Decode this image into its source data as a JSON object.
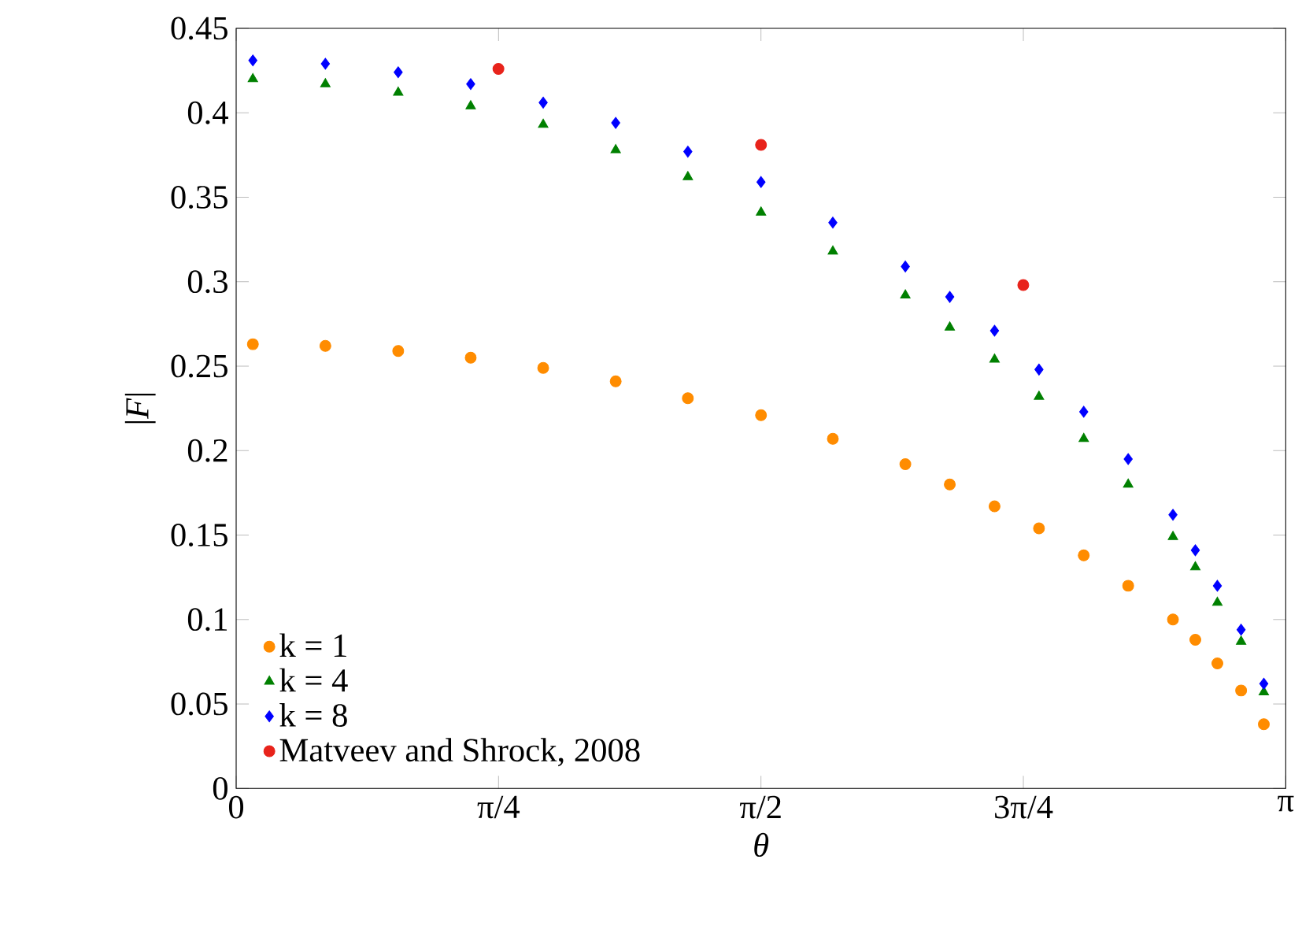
{
  "chart_data": {
    "type": "scatter",
    "xlabel": "θ",
    "ylabel": "|*F*|",
    "xlim": [
      0,
      3.14159
    ],
    "ylim": [
      0,
      0.45
    ],
    "xticks": [
      0,
      {
        "value": 0.7854,
        "label": "π/4"
      },
      {
        "value": 1.5708,
        "label": "π/2"
      },
      {
        "value": 2.3562,
        "label": "3π/4"
      },
      {
        "value": 3.14159,
        "label": "π"
      }
    ],
    "yticks": [
      0,
      0.05,
      0.1,
      0.15,
      0.2,
      0.25,
      0.3,
      0.35,
      0.4,
      0.45
    ],
    "legend": "bottom left",
    "grid": false,
    "series": [
      {
        "name": "k = 1",
        "color": "#ff8c00",
        "marker": "circle",
        "x": [
          0.05,
          0.267,
          0.485,
          0.702,
          0.919,
          1.136,
          1.352,
          1.571,
          1.786,
          2.003,
          2.136,
          2.27,
          2.403,
          2.537,
          2.67,
          2.804,
          2.871,
          2.937,
          3.008,
          3.076
        ],
        "values": [
          0.263,
          0.262,
          0.259,
          0.255,
          0.249,
          0.241,
          0.231,
          0.221,
          0.207,
          0.192,
          0.18,
          0.167,
          0.154,
          0.138,
          0.12,
          0.1,
          0.088,
          0.074,
          0.058,
          0.038
        ]
      },
      {
        "name": "k = 4",
        "color": "#008000",
        "marker": "triangle",
        "x": [
          0.05,
          0.267,
          0.485,
          0.702,
          0.919,
          1.136,
          1.352,
          1.571,
          1.786,
          2.003,
          2.136,
          2.27,
          2.403,
          2.537,
          2.67,
          2.804,
          2.871,
          2.937,
          3.008,
          3.076
        ],
        "values": [
          0.42,
          0.417,
          0.412,
          0.404,
          0.393,
          0.378,
          0.362,
          0.341,
          0.318,
          0.292,
          0.273,
          0.254,
          0.232,
          0.207,
          0.18,
          0.149,
          0.131,
          0.11,
          0.087,
          0.057
        ]
      },
      {
        "name": "k = 8",
        "color": "#0000ff",
        "marker": "diamond",
        "x": [
          0.05,
          0.267,
          0.485,
          0.702,
          0.919,
          1.136,
          1.352,
          1.571,
          1.786,
          2.003,
          2.136,
          2.27,
          2.403,
          2.537,
          2.67,
          2.804,
          2.871,
          2.937,
          3.008,
          3.076
        ],
        "values": [
          0.431,
          0.429,
          0.424,
          0.417,
          0.406,
          0.394,
          0.377,
          0.359,
          0.335,
          0.309,
          0.291,
          0.271,
          0.248,
          0.223,
          0.195,
          0.162,
          0.141,
          0.12,
          0.094,
          0.062
        ]
      },
      {
        "name": "Matveev and Shrock, 2008",
        "color": "#e8231b",
        "marker": "circle",
        "x": [
          0.785,
          1.571,
          2.356
        ],
        "values": [
          0.426,
          0.381,
          0.298
        ]
      }
    ]
  }
}
